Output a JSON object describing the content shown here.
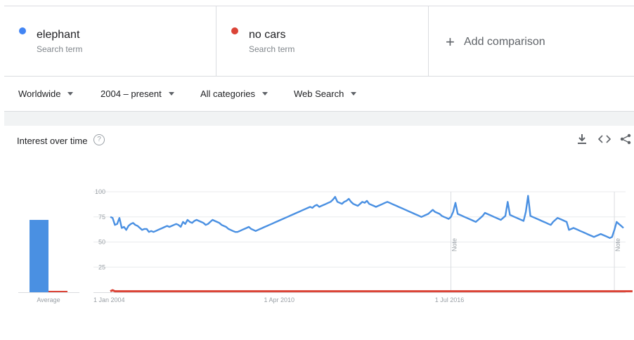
{
  "terms": [
    {
      "label": "elephant",
      "sub": "Search term",
      "color": "#4285f4"
    },
    {
      "label": "no cars",
      "sub": "Search term",
      "color": "#db4437"
    }
  ],
  "add_comparison": "Add comparison",
  "filters": {
    "region": "Worldwide",
    "time": "2004 – present",
    "category": "All categories",
    "search_type": "Web Search"
  },
  "section": {
    "title": "Interest over time",
    "help": "?"
  },
  "icons": {
    "download": "download-icon",
    "embed": "embed-icon",
    "share": "share-icon"
  },
  "chart_data": {
    "type": "line",
    "ylim": [
      0,
      100
    ],
    "yticks": [
      25,
      50,
      75,
      100
    ],
    "x_tick_labels": [
      "1 Jan 2004",
      "1 Apr 2010",
      "1 Jul 2016"
    ],
    "x_tick_index": [
      0,
      75,
      150
    ],
    "note_index": [
      150,
      222
    ],
    "note_label": "Note",
    "average_label": "Average",
    "averages": [
      {
        "name": "elephant",
        "value": 72
      },
      {
        "name": "no cars",
        "value": 1
      }
    ],
    "series": [
      {
        "name": "elephant",
        "color": "#4a90e2",
        "values": [
          75,
          74,
          67,
          68,
          74,
          64,
          65,
          62,
          66,
          68,
          69,
          67,
          66,
          64,
          62,
          63,
          63,
          60,
          61,
          60,
          61,
          62,
          63,
          64,
          65,
          66,
          65,
          66,
          67,
          68,
          67,
          65,
          70,
          68,
          72,
          70,
          69,
          71,
          72,
          71,
          70,
          69,
          67,
          68,
          70,
          72,
          71,
          70,
          69,
          67,
          66,
          65,
          63,
          62,
          61,
          60,
          60,
          61,
          62,
          63,
          64,
          65,
          63,
          62,
          61,
          62,
          63,
          64,
          65,
          66,
          67,
          68,
          69,
          70,
          71,
          72,
          73,
          74,
          75,
          76,
          77,
          78,
          79,
          80,
          81,
          82,
          83,
          84,
          85,
          84,
          86,
          87,
          85,
          86,
          87,
          88,
          89,
          90,
          92,
          95,
          90,
          89,
          88,
          90,
          91,
          93,
          90,
          88,
          87,
          86,
          88,
          90,
          89,
          91,
          88,
          87,
          86,
          85,
          86,
          87,
          88,
          89,
          90,
          89,
          88,
          87,
          86,
          85,
          84,
          83,
          82,
          81,
          80,
          79,
          78,
          77,
          76,
          75,
          76,
          77,
          78,
          80,
          82,
          80,
          79,
          78,
          76,
          75,
          74,
          73,
          75,
          80,
          89,
          78,
          77,
          76,
          75,
          74,
          73,
          72,
          71,
          70,
          72,
          74,
          76,
          79,
          78,
          77,
          76,
          75,
          74,
          73,
          72,
          74,
          76,
          90,
          77,
          76,
          75,
          74,
          73,
          72,
          71,
          80,
          96,
          76,
          75,
          74,
          73,
          72,
          71,
          70,
          69,
          68,
          67,
          70,
          72,
          74,
          73,
          72,
          71,
          70,
          62,
          63,
          64,
          63,
          62,
          61,
          60,
          59,
          58,
          57,
          56,
          55,
          56,
          57,
          58,
          57,
          56,
          55,
          54,
          55,
          62,
          70,
          68,
          66,
          64
        ]
      },
      {
        "name": "no cars",
        "color": "#db4437",
        "values": [
          1,
          2,
          1,
          1,
          1,
          1,
          1,
          1,
          1,
          1,
          1,
          1,
          1,
          1,
          1,
          1,
          1,
          1,
          1,
          1,
          1,
          1,
          1,
          1,
          1,
          1,
          1,
          1,
          1,
          1,
          1,
          1,
          1,
          1,
          1,
          1,
          1,
          1,
          1,
          1,
          1,
          1,
          1,
          1,
          1,
          1,
          1,
          1,
          1,
          1,
          1,
          1,
          1,
          1,
          1,
          1,
          1,
          1,
          1,
          1,
          1,
          1,
          1,
          1,
          1,
          1,
          1,
          1,
          1,
          1,
          1,
          1,
          1,
          1,
          1,
          1,
          1,
          1,
          1,
          1,
          1,
          1,
          1,
          1,
          1,
          1,
          1,
          1,
          1,
          1,
          1,
          1,
          1,
          1,
          1,
          1,
          1,
          1,
          1,
          1,
          1,
          1,
          1,
          1,
          1,
          1,
          1,
          1,
          1,
          1,
          1,
          1,
          1,
          1,
          1,
          1,
          1,
          1,
          1,
          1,
          1,
          1,
          1,
          1,
          1,
          1,
          1,
          1,
          1,
          1,
          1,
          1,
          1,
          1,
          1,
          1,
          1,
          1,
          1,
          1,
          1,
          1,
          1,
          1,
          1,
          1,
          1,
          1,
          1,
          1,
          1,
          1,
          1,
          1,
          1,
          1,
          1,
          1,
          1,
          1,
          1,
          1,
          1,
          1,
          1,
          1,
          1,
          1,
          1,
          1,
          1,
          1,
          1,
          1,
          1,
          1,
          1,
          1,
          1,
          1,
          1,
          1,
          1,
          1,
          1,
          1,
          1,
          1,
          1,
          1,
          1,
          1,
          1,
          1,
          1,
          1,
          1,
          1,
          1,
          1,
          1,
          1,
          1,
          1,
          1,
          1,
          1,
          1,
          1,
          1,
          1,
          1,
          1,
          1,
          1,
          1,
          1,
          1,
          1,
          1,
          1,
          1,
          1,
          1,
          1,
          1,
          1,
          1,
          1,
          1,
          1
        ]
      }
    ]
  }
}
